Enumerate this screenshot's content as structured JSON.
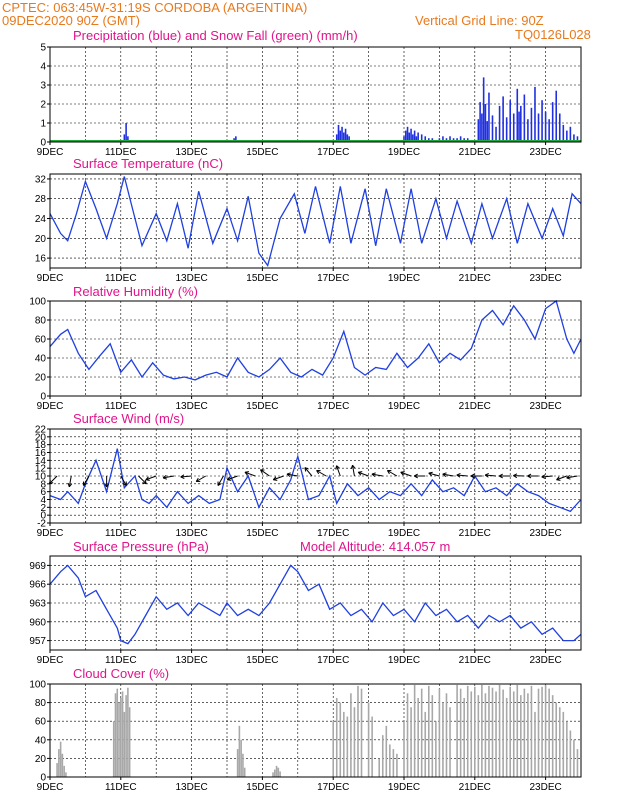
{
  "header": {
    "line1_left": "CPTEC:   063:45W-31:19S   CORDOBA (ARGENTINA)",
    "line2_left": "09DEC2020 90Z (GMT)",
    "line2_right": "Vertical Grid Line: 90Z",
    "line3_right": "TQ0126L028"
  },
  "x_axis": {
    "labels": [
      "9DEC",
      "11DEC",
      "13DEC",
      "15DEC",
      "17DEC",
      "19DEC",
      "21DEC",
      "23DEC"
    ],
    "label_days": [
      0,
      2,
      4,
      6,
      8,
      10,
      12,
      14
    ],
    "range_days": [
      0,
      15
    ]
  },
  "chart_data": [
    {
      "type": "bar",
      "title": "Precipitation (blue) and Snow Fall (green) (mm/h)",
      "ylim": [
        0,
        5
      ],
      "yticks": [
        0,
        1,
        2,
        3,
        4,
        5
      ],
      "color": "#2030e0",
      "series": [
        {
          "x": [
            2.1,
            2.15,
            2.2,
            5.2,
            5.25,
            8.1,
            8.15,
            8.2,
            8.25,
            8.3,
            8.35,
            8.4,
            8.45,
            10.0,
            10.05,
            10.1,
            10.15,
            10.2,
            10.25,
            10.3,
            10.35,
            10.4,
            10.5,
            10.6,
            10.7,
            10.8,
            11.0,
            11.1,
            11.2,
            11.3,
            11.4,
            11.5,
            11.6,
            11.7,
            11.8,
            12.1,
            12.15,
            12.2,
            12.25,
            12.3,
            12.35,
            12.4,
            12.5,
            12.6,
            12.7,
            12.8,
            12.9,
            13.0,
            13.1,
            13.2,
            13.25,
            13.3,
            13.4,
            13.5,
            13.6,
            13.7,
            13.8,
            13.9,
            14.0,
            14.1,
            14.2,
            14.3,
            14.4,
            14.5,
            14.6,
            14.7,
            14.8,
            14.9
          ],
          "y": [
            0.4,
            1.0,
            0.3,
            0.2,
            0.3,
            0.4,
            0.9,
            0.6,
            0.8,
            0.5,
            0.7,
            0.4,
            0.3,
            0.3,
            0.6,
            0.8,
            0.5,
            0.7,
            0.4,
            0.6,
            0.3,
            0.5,
            0.4,
            0.3,
            0.2,
            0.2,
            0.2,
            0.3,
            0.2,
            0.3,
            0.2,
            0.2,
            0.3,
            0.2,
            0.2,
            1.2,
            2.1,
            1.5,
            3.4,
            2.0,
            1.1,
            2.6,
            1.4,
            0.8,
            1.9,
            2.4,
            1.3,
            2.2,
            1.5,
            2.8,
            1.6,
            1.9,
            2.5,
            1.2,
            1.8,
            2.9,
            1.5,
            2.2,
            1.6,
            1.2,
            2.1,
            2.7,
            1.5,
            0.9,
            0.6,
            0.8,
            0.4,
            0.3
          ]
        }
      ]
    },
    {
      "type": "line",
      "title": "Surface Temperature (nC)",
      "ylim": [
        14,
        33
      ],
      "yticks": [
        16,
        20,
        24,
        28,
        32
      ],
      "color": "#2040e0",
      "series": [
        {
          "x": [
            0,
            0.3,
            0.5,
            0.75,
            1.0,
            1.3,
            1.6,
            1.9,
            2.1,
            2.4,
            2.6,
            3.0,
            3.3,
            3.6,
            3.9,
            4.2,
            4.6,
            5.0,
            5.3,
            5.6,
            5.9,
            6.15,
            6.5,
            6.9,
            7.2,
            7.5,
            7.9,
            8.2,
            8.5,
            8.9,
            9.2,
            9.5,
            9.9,
            10.2,
            10.5,
            10.9,
            11.2,
            11.5,
            11.9,
            12.2,
            12.5,
            12.9,
            13.2,
            13.5,
            13.9,
            14.2,
            14.5,
            14.75,
            15.0
          ],
          "y": [
            25,
            21,
            19.5,
            25,
            31.5,
            26,
            20,
            27,
            32.5,
            24,
            18.5,
            25,
            19.5,
            27,
            18,
            29.5,
            19,
            26,
            19.5,
            28.5,
            17,
            14.5,
            24,
            29,
            21,
            30.5,
            19,
            30.5,
            19,
            30,
            18.5,
            30,
            19,
            30,
            19,
            28,
            20,
            27.5,
            19,
            27,
            20,
            28,
            19,
            27,
            20,
            26,
            20.5,
            29,
            27
          ]
        }
      ]
    },
    {
      "type": "line",
      "title": "Relative Humidity (%)",
      "ylim": [
        0,
        100
      ],
      "yticks": [
        0,
        20,
        40,
        60,
        80,
        100
      ],
      "color": "#2040e0",
      "series": [
        {
          "x": [
            0,
            0.3,
            0.5,
            0.8,
            1.1,
            1.4,
            1.7,
            2.0,
            2.3,
            2.6,
            2.9,
            3.2,
            3.5,
            3.8,
            4.1,
            4.4,
            4.7,
            5.0,
            5.3,
            5.6,
            5.9,
            6.2,
            6.5,
            6.8,
            7.1,
            7.4,
            7.7,
            8.0,
            8.3,
            8.6,
            8.9,
            9.2,
            9.5,
            9.8,
            10.1,
            10.4,
            10.7,
            11.0,
            11.3,
            11.6,
            11.9,
            12.2,
            12.5,
            12.8,
            13.1,
            13.4,
            13.7,
            14.0,
            14.3,
            14.6,
            14.8,
            15.0
          ],
          "y": [
            52,
            65,
            70,
            45,
            28,
            42,
            55,
            25,
            38,
            20,
            35,
            22,
            18,
            20,
            17,
            22,
            25,
            20,
            40,
            25,
            20,
            28,
            40,
            25,
            20,
            28,
            22,
            40,
            68,
            30,
            22,
            30,
            28,
            45,
            30,
            40,
            55,
            35,
            45,
            38,
            50,
            80,
            90,
            75,
            95,
            80,
            60,
            92,
            100,
            60,
            45,
            60
          ]
        }
      ]
    },
    {
      "type": "line",
      "title": "Surface Wind (m/s)",
      "ylim": [
        -2,
        22
      ],
      "yticks": [
        -2,
        0,
        2,
        4,
        6,
        8,
        10,
        12,
        14,
        16,
        18,
        20,
        22
      ],
      "color": "#2040e0",
      "series": [
        {
          "x": [
            0,
            0.3,
            0.5,
            0.8,
            1.0,
            1.3,
            1.6,
            1.9,
            2.1,
            2.4,
            2.6,
            2.8,
            3.0,
            3.3,
            3.6,
            3.9,
            4.2,
            4.5,
            4.8,
            5.0,
            5.3,
            5.6,
            5.9,
            6.2,
            6.5,
            6.8,
            7.0,
            7.3,
            7.6,
            7.9,
            8.1,
            8.4,
            8.7,
            9.0,
            9.3,
            9.6,
            9.9,
            10.2,
            10.5,
            10.8,
            11.1,
            11.4,
            11.7,
            12.0,
            12.3,
            12.6,
            12.9,
            13.2,
            13.5,
            13.8,
            14.1,
            14.4,
            14.7,
            15.0
          ],
          "y": [
            5,
            4,
            6,
            3,
            8,
            14,
            6,
            17,
            7,
            10,
            4,
            3,
            5,
            2,
            6,
            3,
            5,
            3,
            4,
            12,
            6,
            10,
            2,
            7,
            4,
            9,
            15,
            4,
            5,
            10,
            3,
            8,
            5,
            7,
            4,
            6,
            5,
            8,
            5,
            9,
            6,
            7,
            5,
            10,
            6,
            7,
            5,
            8,
            6,
            5,
            3,
            2,
            1,
            4
          ]
        }
      ]
    },
    {
      "type": "line",
      "title": "Surface Pressure (hPa)",
      "annotation": "Model Altitude: 414.057 m",
      "ylim": [
        955.5,
        970.5
      ],
      "yticks": [
        957,
        960,
        963,
        966,
        969
      ],
      "color": "#2040e0",
      "series": [
        {
          "x": [
            0,
            0.3,
            0.5,
            0.8,
            1.0,
            1.3,
            1.6,
            1.9,
            2.0,
            2.2,
            2.4,
            2.7,
            3.0,
            3.3,
            3.6,
            3.9,
            4.2,
            4.5,
            4.8,
            5.0,
            5.3,
            5.6,
            5.9,
            6.2,
            6.5,
            6.8,
            7.0,
            7.3,
            7.6,
            7.9,
            8.2,
            8.5,
            8.8,
            9.1,
            9.4,
            9.7,
            10.0,
            10.3,
            10.6,
            10.9,
            11.2,
            11.5,
            11.8,
            12.1,
            12.4,
            12.7,
            13.0,
            13.3,
            13.6,
            13.9,
            14.2,
            14.5,
            14.8,
            15.0
          ],
          "y": [
            966,
            968,
            969,
            967,
            964,
            965,
            962,
            959,
            957,
            956.5,
            958,
            961,
            964,
            962,
            963,
            961,
            963,
            962,
            961,
            963,
            961,
            962,
            961,
            963,
            966,
            969,
            968,
            965,
            966,
            962,
            963,
            961,
            962,
            960,
            963,
            961,
            962,
            960,
            963,
            961,
            962,
            960,
            961,
            959,
            961,
            960,
            961,
            959,
            960,
            958,
            959,
            957,
            957,
            958
          ]
        }
      ]
    },
    {
      "type": "bar",
      "title": "Cloud Cover (%)",
      "ylim": [
        0,
        100
      ],
      "yticks": [
        0,
        20,
        40,
        60,
        80,
        100
      ],
      "color": "#a8a8a8",
      "series": [
        {
          "x": [
            0.2,
            0.25,
            0.3,
            0.35,
            0.4,
            0.45,
            1.8,
            1.85,
            1.9,
            1.95,
            2.0,
            2.05,
            2.1,
            2.15,
            2.2,
            2.25,
            5.3,
            5.35,
            5.4,
            5.45,
            5.5,
            6.3,
            6.35,
            6.4,
            6.45,
            6.5,
            8.0,
            8.1,
            8.2,
            8.3,
            8.4,
            8.5,
            8.6,
            8.7,
            8.8,
            9.0,
            9.1,
            9.3,
            9.4,
            9.5,
            9.6,
            9.7,
            9.8,
            10.0,
            10.1,
            10.2,
            10.3,
            10.4,
            10.5,
            10.6,
            10.7,
            10.8,
            10.9,
            11.0,
            11.1,
            11.2,
            11.3,
            11.5,
            11.6,
            11.7,
            11.8,
            11.9,
            12.0,
            12.1,
            12.2,
            12.3,
            12.4,
            12.5,
            12.6,
            12.7,
            12.8,
            12.9,
            13.0,
            13.1,
            13.2,
            13.3,
            13.4,
            13.5,
            13.6,
            13.7,
            13.8,
            13.9,
            14.0,
            14.1,
            14.2,
            14.3,
            14.4,
            14.5,
            14.6,
            14.7,
            14.8,
            14.9
          ],
          "y": [
            15,
            30,
            38,
            25,
            12,
            5,
            60,
            90,
            95,
            80,
            85,
            92,
            70,
            88,
            96,
            75,
            30,
            55,
            40,
            25,
            10,
            5,
            8,
            12,
            10,
            6,
            60,
            85,
            80,
            70,
            65,
            90,
            75,
            98,
            95,
            80,
            65,
            20,
            45,
            55,
            35,
            30,
            25,
            60,
            90,
            75,
            99,
            85,
            95,
            70,
            98,
            88,
            60,
            95,
            80,
            90,
            75,
            99,
            95,
            85,
            98,
            92,
            97,
            88,
            99,
            90,
            98,
            96,
            92,
            99,
            94,
            85,
            97,
            92,
            99,
            88,
            95,
            90,
            98,
            70,
            95,
            97,
            99,
            95,
            88,
            80,
            75,
            70,
            60,
            50,
            40,
            30
          ]
        }
      ]
    }
  ],
  "wind_arrows": {
    "x": [
      0.2,
      0.6,
      1.1,
      1.6,
      2.0,
      2.5,
      3.0,
      3.5,
      4.0,
      4.4,
      4.9,
      5.3,
      5.8,
      6.2,
      6.6,
      7.0,
      7.4,
      7.8,
      8.2,
      8.6,
      9.0,
      9.4,
      9.8,
      10.2,
      10.6,
      11.0,
      11.4,
      11.8,
      12.2,
      12.6,
      13.0,
      13.4,
      13.8,
      14.2,
      14.6,
      14.9
    ],
    "angle_deg": [
      225,
      260,
      240,
      270,
      300,
      315,
      200,
      190,
      185,
      210,
      240,
      200,
      160,
      145,
      200,
      170,
      130,
      150,
      110,
      100,
      160,
      170,
      150,
      160,
      180,
      165,
      170,
      175,
      180,
      175,
      180,
      178,
      180,
      185,
      200,
      190
    ]
  },
  "panels_text": {
    "t1": "Precipitation (blue) and Snow Fall (green) (mm/h)",
    "t2": "Surface Temperature (nC)",
    "t3": "Relative Humidity (%)",
    "t4": "Surface Wind (m/s)",
    "t5": "Surface Pressure (hPa)",
    "t5b": "Model Altitude: 414.057 m",
    "t6": "Cloud Cover (%)"
  }
}
